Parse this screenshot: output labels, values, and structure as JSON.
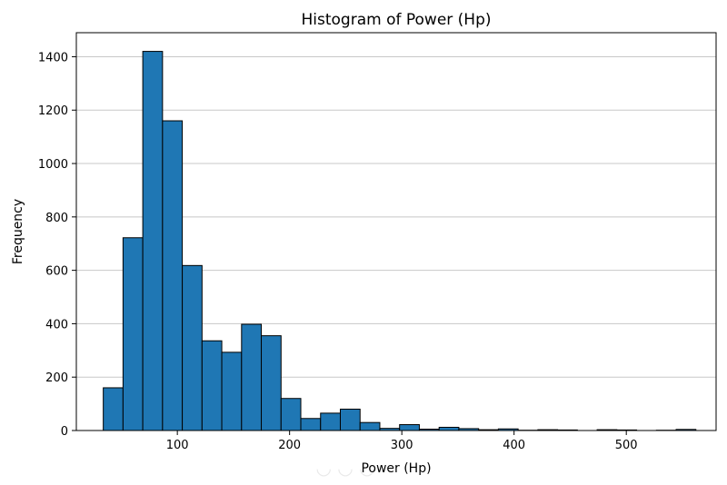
{
  "chart_data": {
    "type": "bar",
    "title": "Histogram of Power (Hp)",
    "xlabel": "Power (Hp)",
    "ylabel": "Frequency",
    "xlim": [
      10,
      580
    ],
    "ylim": [
      0,
      1490
    ],
    "xticks": [
      100,
      200,
      300,
      400,
      500
    ],
    "yticks": [
      0,
      200,
      400,
      600,
      800,
      1000,
      1200,
      1400
    ],
    "grid": "y",
    "bar_color": "#1f77b4",
    "edge_color": "#000000",
    "grid_color": "#c8c8c8",
    "bins": [
      {
        "x0": 34.0,
        "x1": 51.6,
        "count": 160
      },
      {
        "x0": 51.6,
        "x1": 69.2,
        "count": 722
      },
      {
        "x0": 69.2,
        "x1": 86.8,
        "count": 1420
      },
      {
        "x0": 86.8,
        "x1": 104.4,
        "count": 1160
      },
      {
        "x0": 104.4,
        "x1": 122.0,
        "count": 618
      },
      {
        "x0": 122.0,
        "x1": 139.6,
        "count": 336
      },
      {
        "x0": 139.6,
        "x1": 157.2,
        "count": 293
      },
      {
        "x0": 157.2,
        "x1": 174.8,
        "count": 398
      },
      {
        "x0": 174.8,
        "x1": 192.4,
        "count": 355
      },
      {
        "x0": 192.4,
        "x1": 210.0,
        "count": 120
      },
      {
        "x0": 210.0,
        "x1": 227.6,
        "count": 45
      },
      {
        "x0": 227.6,
        "x1": 245.2,
        "count": 65
      },
      {
        "x0": 245.2,
        "x1": 262.8,
        "count": 80
      },
      {
        "x0": 262.8,
        "x1": 280.4,
        "count": 30
      },
      {
        "x0": 280.4,
        "x1": 298.0,
        "count": 8
      },
      {
        "x0": 298.0,
        "x1": 315.6,
        "count": 22
      },
      {
        "x0": 315.6,
        "x1": 333.2,
        "count": 5
      },
      {
        "x0": 333.2,
        "x1": 350.8,
        "count": 12
      },
      {
        "x0": 350.8,
        "x1": 368.4,
        "count": 7
      },
      {
        "x0": 368.4,
        "x1": 386.0,
        "count": 3
      },
      {
        "x0": 386.0,
        "x1": 403.6,
        "count": 6
      },
      {
        "x0": 403.6,
        "x1": 421.2,
        "count": 1
      },
      {
        "x0": 421.2,
        "x1": 438.8,
        "count": 3
      },
      {
        "x0": 438.8,
        "x1": 456.4,
        "count": 2
      },
      {
        "x0": 456.4,
        "x1": 474.0,
        "count": 0
      },
      {
        "x0": 474.0,
        "x1": 491.6,
        "count": 3
      },
      {
        "x0": 491.6,
        "x1": 509.2,
        "count": 2
      },
      {
        "x0": 509.2,
        "x1": 526.8,
        "count": 0
      },
      {
        "x0": 526.8,
        "x1": 544.4,
        "count": 1
      },
      {
        "x0": 544.4,
        "x1": 562.0,
        "count": 4
      }
    ]
  }
}
